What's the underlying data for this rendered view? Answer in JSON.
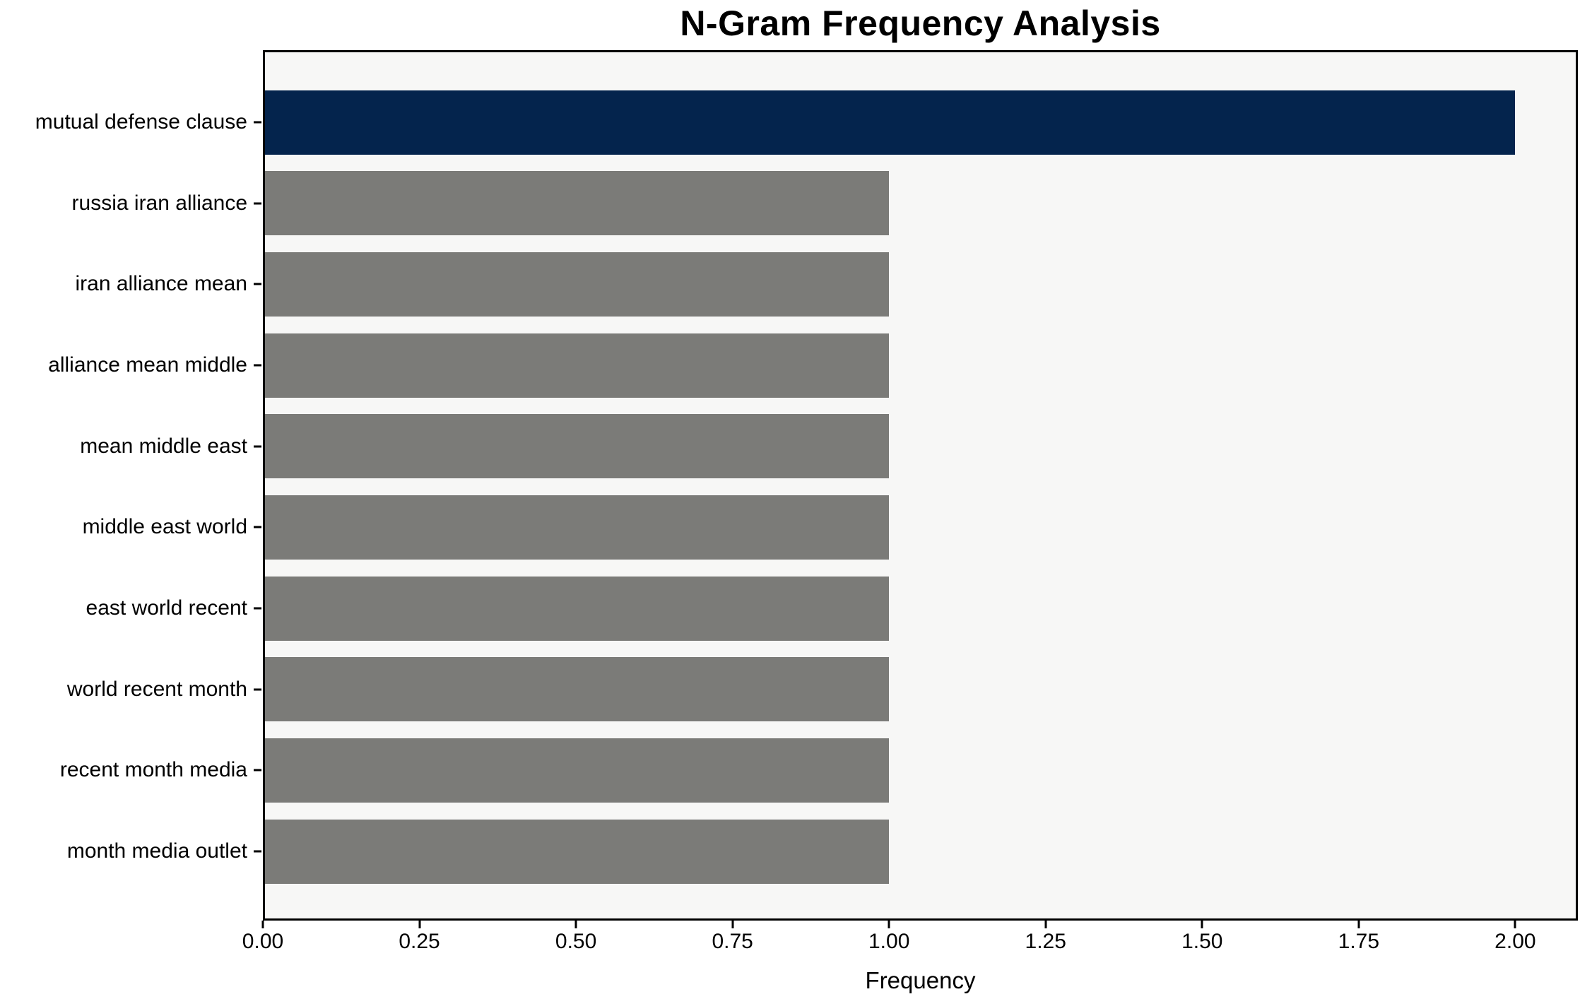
{
  "chart_data": {
    "type": "bar",
    "orientation": "horizontal",
    "title": "N-Gram Frequency Analysis",
    "xlabel": "Frequency",
    "ylabel": "",
    "categories": [
      "mutual defense clause",
      "russia iran alliance",
      "iran alliance mean",
      "alliance mean middle",
      "mean middle east",
      "middle east world",
      "east world recent",
      "world recent month",
      "recent month media",
      "month media outlet"
    ],
    "values": [
      2,
      1,
      1,
      1,
      1,
      1,
      1,
      1,
      1,
      1
    ],
    "bar_colors": [
      "#04244d",
      "#7b7b78",
      "#7b7b78",
      "#7b7b78",
      "#7b7b78",
      "#7b7b78",
      "#7b7b78",
      "#7b7b78",
      "#7b7b78",
      "#7b7b78"
    ],
    "xticks": [
      {
        "value": 0.0,
        "label": "0.00"
      },
      {
        "value": 0.25,
        "label": "0.25"
      },
      {
        "value": 0.5,
        "label": "0.50"
      },
      {
        "value": 0.75,
        "label": "0.75"
      },
      {
        "value": 1.0,
        "label": "1.00"
      },
      {
        "value": 1.25,
        "label": "1.25"
      },
      {
        "value": 1.5,
        "label": "1.50"
      },
      {
        "value": 1.75,
        "label": "1.75"
      },
      {
        "value": 2.0,
        "label": "2.00"
      }
    ],
    "xlim": [
      0,
      2.1
    ],
    "grid": false,
    "legend": null,
    "colors": {
      "highlight_bar": "#04244d",
      "default_bar": "#7b7b78",
      "plot_background": "#f7f7f6",
      "figure_background": "#ffffff",
      "spine": "#000000",
      "text": "#000000"
    }
  }
}
